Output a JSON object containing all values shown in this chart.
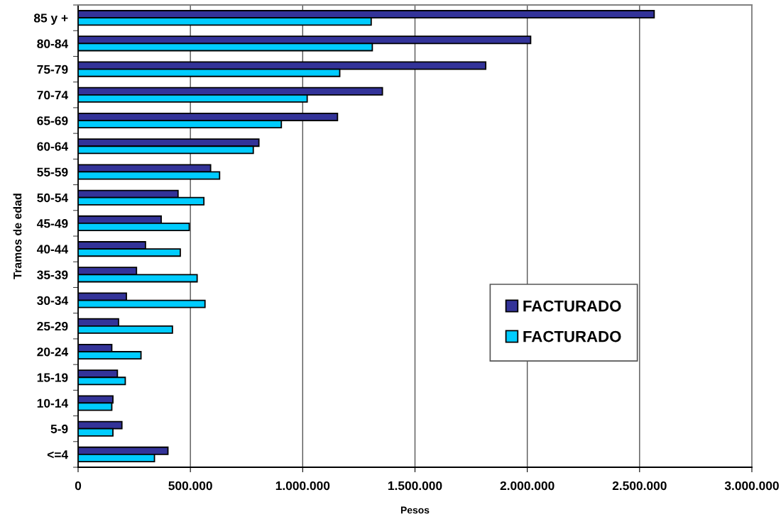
{
  "chart_data": {
    "type": "bar",
    "orientation": "horizontal",
    "xlabel": "Pesos",
    "ylabel": "Tramos de edad",
    "categories": [
      "85 y +",
      "80-84",
      "75-79",
      "70-74",
      "65-69",
      "60-64",
      "55-59",
      "50-54",
      "45-49",
      "40-44",
      "35-39",
      "30-34",
      "25-29",
      "20-24",
      "15-19",
      "10-14",
      "5-9",
      "<=4"
    ],
    "series": [
      {
        "name": "FACTURADO",
        "color": "#333399",
        "values": [
          2565000,
          2015000,
          1815000,
          1355000,
          1155000,
          805000,
          590000,
          445000,
          370000,
          300000,
          260000,
          215000,
          180000,
          150000,
          175000,
          155000,
          195000,
          400000
        ]
      },
      {
        "name": "FACTURADO",
        "color": "#00ccff",
        "values": [
          1305000,
          1310000,
          1165000,
          1020000,
          905000,
          780000,
          630000,
          560000,
          495000,
          455000,
          530000,
          565000,
          420000,
          280000,
          210000,
          150000,
          155000,
          340000
        ]
      }
    ],
    "xlim": [
      0,
      3000000
    ],
    "xticks": [
      0,
      {
        "value": 500000,
        "label": "500.000"
      },
      {
        "value": 1000000,
        "label": "1.000.000"
      },
      {
        "value": 1500000,
        "label": "1.500.000"
      },
      {
        "value": 2000000,
        "label": "2.000.000"
      },
      {
        "value": 2500000,
        "label": "2.500.000"
      },
      {
        "value": 3000000,
        "label": "3.000.000"
      }
    ],
    "grid": "x",
    "legend": "lower right"
  }
}
